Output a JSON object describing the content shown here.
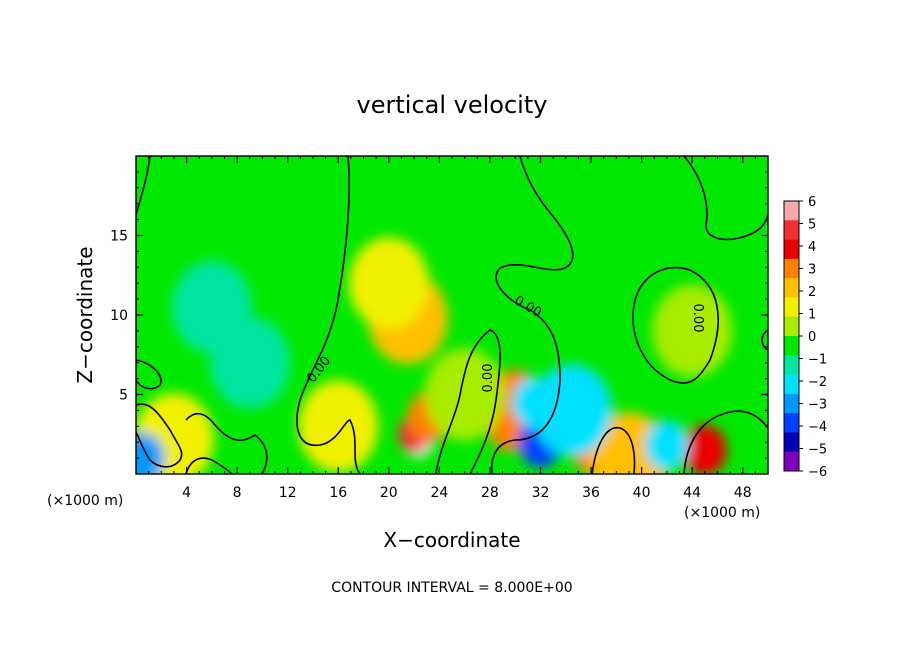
{
  "chart_data": {
    "type": "heatmap",
    "title": "vertical velocity",
    "xlabel": "X−coordinate",
    "ylabel": "Z−coordinate",
    "x_unit_left": "(×1000 m)",
    "x_unit_right": "(×1000 m)",
    "xlim": [
      0,
      50
    ],
    "ylim": [
      0,
      20
    ],
    "xticks": [
      4,
      8,
      12,
      16,
      20,
      24,
      28,
      32,
      36,
      40,
      44,
      48
    ],
    "yticks": [
      5,
      10,
      15
    ],
    "colorbar": {
      "ticks": [
        "6",
        "5",
        "4",
        "3",
        "2",
        "1",
        "0",
        "−1",
        "−2",
        "−3",
        "−4",
        "−5",
        "−6"
      ],
      "range": [
        -6,
        6
      ],
      "colors": [
        "#f7a8a8",
        "#f03030",
        "#e80000",
        "#ff8000",
        "#ffc000",
        "#f0f000",
        "#a8ec00",
        "#00e800",
        "#00e6a0",
        "#00e0ff",
        "#0098ff",
        "#0040ff",
        "#0000b8",
        "#8000c0"
      ]
    },
    "contour_label": "0.00",
    "contour_interval_text": "CONTOUR INTERVAL = 8.000E+00",
    "features": [
      {
        "x": 22.3,
        "z": 2.2,
        "value": 6.5
      },
      {
        "x": 22.0,
        "z": 2.5,
        "value": 4.8
      },
      {
        "x": 23.2,
        "z": 3.6,
        "value": 3.2
      },
      {
        "x": 1.8,
        "z": 1.2,
        "value": 4.5
      },
      {
        "x": 3.0,
        "z": 2.2,
        "value": 1.5
      },
      {
        "x": 45.0,
        "z": 1.5,
        "value": 3.8
      },
      {
        "x": 30.0,
        "z": 5.0,
        "value": 2.8
      },
      {
        "x": 29.6,
        "z": 3.0,
        "value": 3.0
      },
      {
        "x": 36.3,
        "z": 1.5,
        "value": 3.0
      },
      {
        "x": 39.0,
        "z": 1.0,
        "value": 1.8
      },
      {
        "x": 33.0,
        "z": 2.8,
        "value": -4.2
      },
      {
        "x": 32.0,
        "z": 2.0,
        "value": -3.5
      },
      {
        "x": 31.5,
        "z": 4.5,
        "value": -2.5
      },
      {
        "x": 34.5,
        "z": 4.0,
        "value": -2.0
      },
      {
        "x": 42.0,
        "z": 1.8,
        "value": -2.5
      },
      {
        "x": 0.5,
        "z": 1.0,
        "value": -3.0
      },
      {
        "x": 6.0,
        "z": 10.5,
        "value": -1.6
      },
      {
        "x": 9.0,
        "z": 7.0,
        "value": -1.2
      },
      {
        "x": 21.5,
        "z": 9.8,
        "value": 1.8
      },
      {
        "x": 20.0,
        "z": 12.0,
        "value": 1.2
      },
      {
        "x": 16.0,
        "z": 3.0,
        "value": 1.0
      },
      {
        "x": 26.0,
        "z": 5.0,
        "value": 0.8
      },
      {
        "x": 44.0,
        "z": 9.0,
        "value": 0.5
      }
    ]
  }
}
